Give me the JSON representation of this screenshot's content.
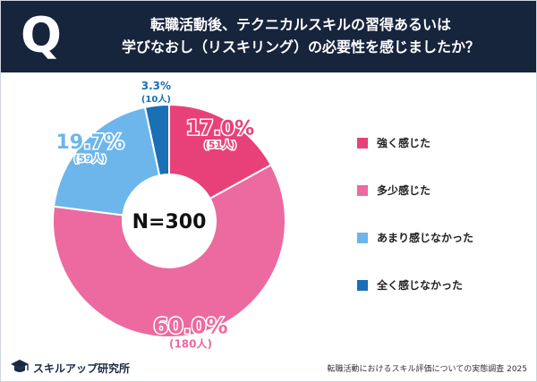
{
  "header": {
    "badge": "Q",
    "question_line1": "転職活動後、テクニカルスキルの習得あるいは",
    "question_line2": "学びなおし（リスキリング）の必要性を感じましたか？"
  },
  "chart_data": {
    "type": "pie",
    "style": "donut",
    "center_label": "N=300",
    "slices": [
      {
        "label": "強く感じた",
        "percent": "17.0%",
        "count": "(51人)",
        "value": 51,
        "color": "#e8417a"
      },
      {
        "label": "多少感じた",
        "percent": "60.0%",
        "count": "(180人)",
        "value": 180,
        "color": "#ec6aa0"
      },
      {
        "label": "あまり感じなかった",
        "percent": "19.7%",
        "count": "(59人)",
        "value": 59,
        "color": "#6cb6ec"
      },
      {
        "label": "全く感じなかった",
        "percent": "3.3%",
        "count": "(10人)",
        "value": 10,
        "color": "#1a6fb5"
      }
    ],
    "legend_position": "right"
  },
  "footer": {
    "logo_text": "スキルアップ研究所",
    "source": "転職活動におけるスキル評価についての実態調査 2025"
  }
}
